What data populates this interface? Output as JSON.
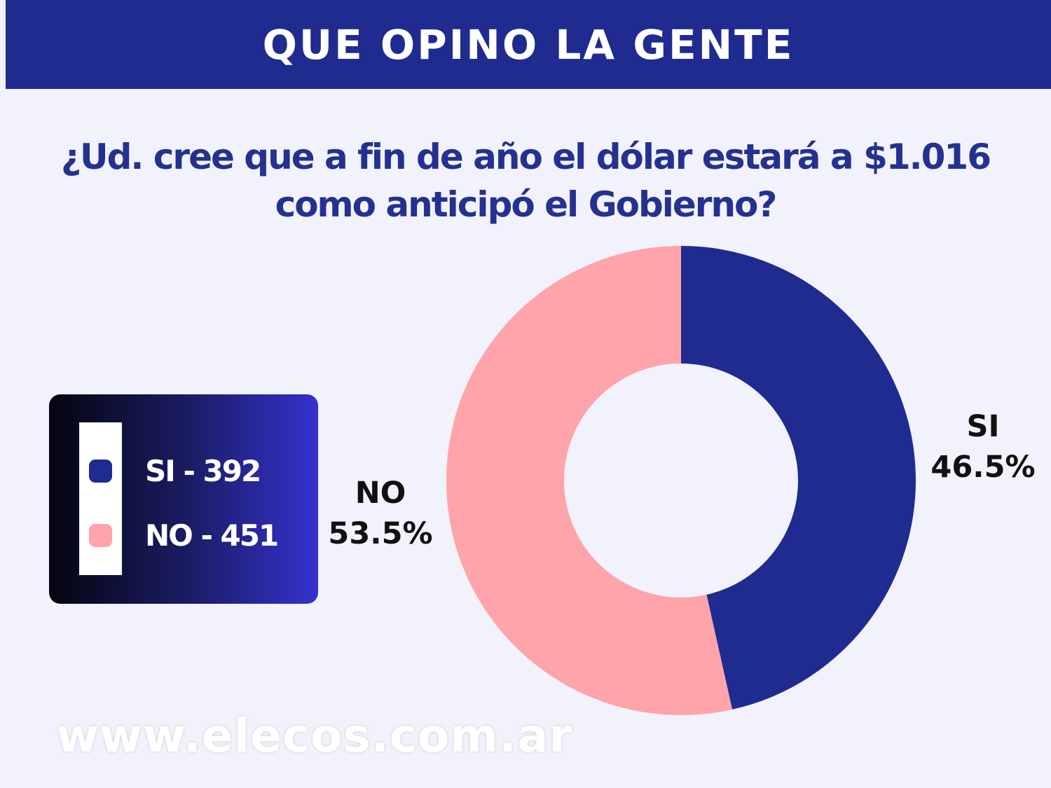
{
  "header": {
    "title": "QUE OPINO LA GENTE"
  },
  "question": {
    "line1": "¿Ud. cree que a fin de año el dólar estará a $1.016",
    "line2": "como anticipó el Gobierno?"
  },
  "legend": {
    "items": [
      {
        "label": "SI - 392",
        "color": "#1f2b8f"
      },
      {
        "label": "NO - 451",
        "color": "#ffa4aa"
      }
    ]
  },
  "chart_data": {
    "type": "pie",
    "donut": true,
    "slices": [
      {
        "name": "SI",
        "count": 392,
        "percent": 46.5,
        "percent_label": "46.5%",
        "color": "#1f2b8f"
      },
      {
        "name": "NO",
        "count": 451,
        "percent": 53.5,
        "percent_label": "53.5%",
        "color": "#ffa4aa"
      }
    ],
    "start": "top",
    "direction": "clockwise",
    "legend_placement": "left"
  },
  "watermark": {
    "text": "www.elecos.com.ar"
  }
}
